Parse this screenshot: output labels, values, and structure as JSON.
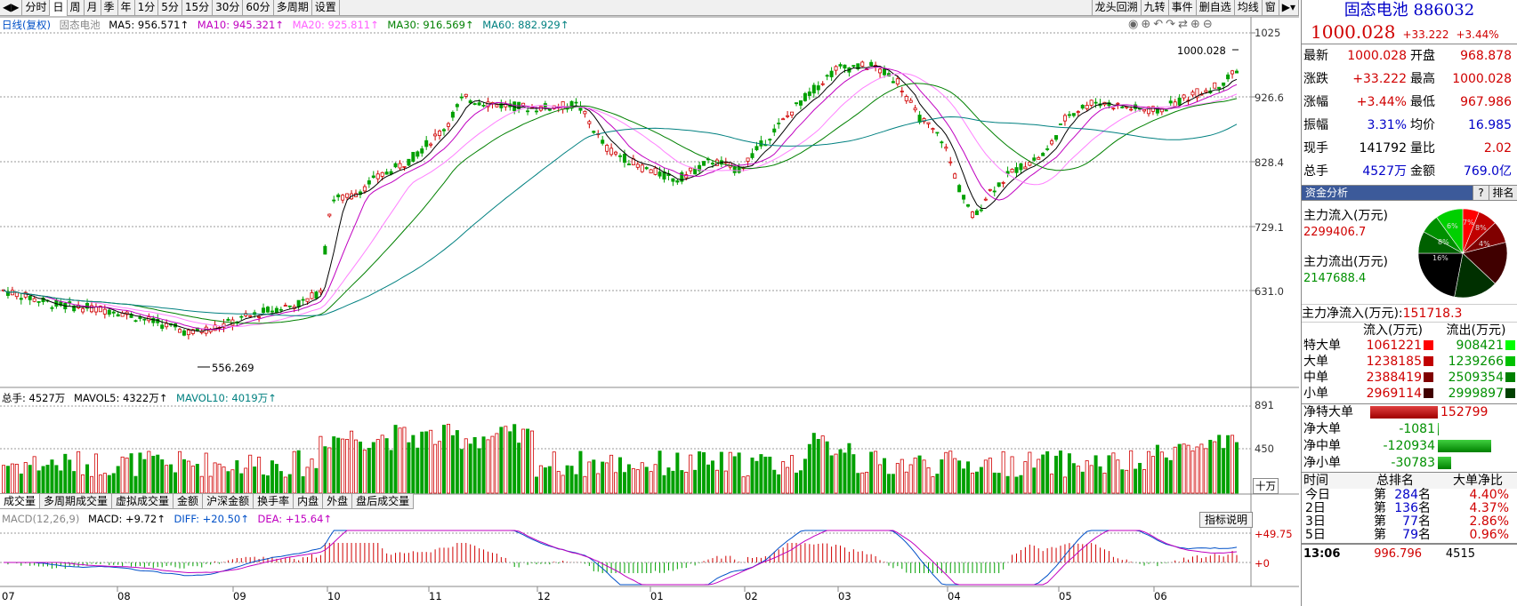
{
  "toolbar": {
    "left": [
      "分时",
      "日",
      "周",
      "月",
      "季",
      "年",
      "1分",
      "5分",
      "15分",
      "30分",
      "60分",
      "多周期",
      "设置"
    ],
    "active": "日",
    "right": [
      "龙头回溯",
      "九转",
      "事件",
      "删自选",
      "均线",
      "窗"
    ]
  },
  "main_legend": {
    "label": "日线(复权)",
    "name": "固态电池",
    "ma5": "MA5: 956.571↑",
    "ma10": "MA10: 945.321↑",
    "ma20": "MA20: 925.811↑",
    "ma30": "MA30: 916.569↑",
    "ma60": "MA60: 882.929↑"
  },
  "price_axis": [
    "1025",
    "926.6",
    "828.4",
    "729.1",
    "631.0"
  ],
  "annotations": {
    "high": "1000.028",
    "low": "556.269"
  },
  "volume_legend": {
    "total": "总手: 4527万",
    "mavol5": "MAVOL5: 4322万↑",
    "mavol10": "MAVOL10: 4019万↑"
  },
  "volume_axis": [
    "891",
    "450"
  ],
  "volume_unit": "十万",
  "subtabs": [
    "成交量",
    "多周期成交量",
    "虚拟成交量",
    "金额",
    "沪深金额",
    "换手率",
    "内盘",
    "外盘",
    "盘后成交量"
  ],
  "macd_legend": {
    "label": "MACD(12,26,9)",
    "macd": "MACD: +9.72↑",
    "diff": "DIFF: +20.50↑",
    "dea": "DEA: +15.64↑"
  },
  "macd_help": "指标说明",
  "macd_axis": [
    "+49.75",
    "+0"
  ],
  "x_axis": [
    "07",
    "08",
    "09",
    "10",
    "11",
    "12",
    "01",
    "02",
    "03",
    "04",
    "05",
    "06"
  ],
  "colors": {
    "up": "#d00000",
    "down": "#00a000",
    "ma5": "#000000",
    "ma10": "#c000c0",
    "ma20": "#ff80ff",
    "ma30": "#008000",
    "ma60": "#008080"
  },
  "quote": {
    "name": "固态电池",
    "code": "886032",
    "price": "1000.028",
    "change": "+33.222",
    "pct": "+3.44%",
    "rows": [
      {
        "k1": "最新",
        "v1": "1000.028",
        "k2": "开盘",
        "v2": "968.878"
      },
      {
        "k1": "涨跌",
        "v1": "+33.222",
        "k2": "最高",
        "v2": "1000.028"
      },
      {
        "k1": "涨幅",
        "v1": "+3.44%",
        "k2": "最低",
        "v2": "967.986"
      },
      {
        "k1": "振幅",
        "v1": "3.31%",
        "k2": "均价",
        "v2": "16.985"
      },
      {
        "k1": "现手",
        "v1": "141792",
        "k2": "量比",
        "v2": "2.02"
      },
      {
        "k1": "总手",
        "v1": "4527万",
        "k2": "金额",
        "v2": "769.0亿"
      }
    ]
  },
  "fund": {
    "title": "资金分析",
    "help": "?",
    "rank": "排名",
    "inflow_label": "主力流入(万元)",
    "inflow": "2299406.7",
    "outflow_label": "主力流出(万元)",
    "outflow": "2147688.4",
    "net_label": "主力净流入(万元):",
    "net": "151718.3",
    "pie_labels": [
      "6%",
      "7%",
      "8%",
      "8%",
      "16%",
      "4%"
    ],
    "table_head": [
      "流入(万元)",
      "流出(万元)"
    ],
    "table": [
      {
        "k": "特大单",
        "in": "1061221",
        "out": "908421"
      },
      {
        "k": "大单",
        "in": "1238185",
        "out": "1239266"
      },
      {
        "k": "中单",
        "in": "2388419",
        "out": "2509354"
      },
      {
        "k": "小单",
        "in": "2969114",
        "out": "2999897"
      }
    ],
    "net_rows": [
      {
        "k": "净特大单",
        "v": "152799",
        "frac": 1.0
      },
      {
        "k": "净大单",
        "v": "-1081",
        "frac": -0.01
      },
      {
        "k": "净中单",
        "v": "-120934",
        "frac": -0.79
      },
      {
        "k": "净小单",
        "v": "-30783",
        "frac": -0.2
      }
    ]
  },
  "rank": {
    "head": [
      "时间",
      "总排名",
      "大单净比"
    ],
    "rows": [
      {
        "t": "今日",
        "p": "第",
        "n": "284",
        "u": "名",
        "r": "4.40%"
      },
      {
        "t": "2日",
        "p": "第",
        "n": "136",
        "u": "名",
        "r": "4.37%"
      },
      {
        "t": "3日",
        "p": "第",
        "n": "77",
        "u": "名",
        "r": "2.86%"
      },
      {
        "t": "5日",
        "p": "第",
        "n": "79",
        "u": "名",
        "r": "0.96%"
      }
    ]
  },
  "tick": {
    "time": "13:06",
    "price": "996.796",
    "vol": "4515"
  }
}
